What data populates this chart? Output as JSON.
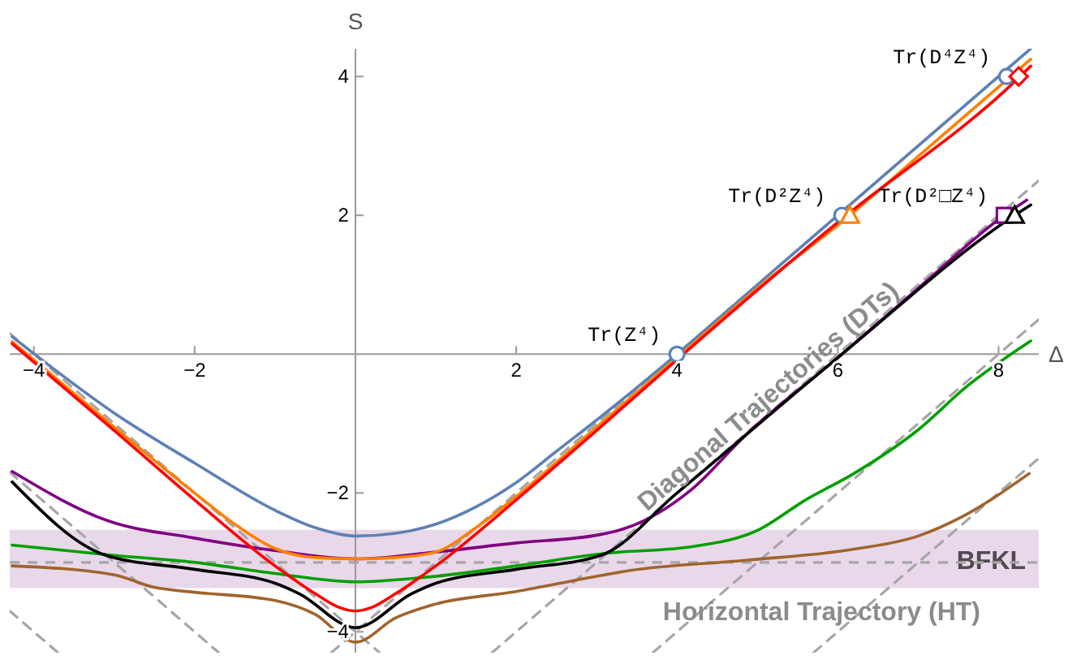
{
  "chart_data": {
    "type": "line",
    "xlabel": "Δ",
    "ylabel": "S",
    "xlim": [
      -4.3,
      8.5
    ],
    "ylim": [
      -4.3,
      4.4
    ],
    "xticks": [
      -4,
      -2,
      2,
      4,
      6,
      8
    ],
    "yticks": [
      -4,
      -2,
      2,
      4
    ],
    "grid": false,
    "bands": [
      {
        "axis": "y",
        "from": -3.37,
        "to": -2.53,
        "label": "BFKL",
        "color": "#e8d8ea"
      }
    ],
    "ref_lines": [
      {
        "axis": "y",
        "value": -3,
        "label": "Horizontal Trajectory (HT)",
        "color": "#a6a6a6",
        "line_style": "dashed"
      }
    ],
    "series": [
      {
        "type": "line",
        "color": "#a6a6a6",
        "line_style": "dashed",
        "x": [
          -0.3,
          8.4
        ],
        "values": [
          -4.3,
          4.4
        ]
      },
      {
        "type": "line",
        "color": "#a6a6a6",
        "line_style": "dashed",
        "x": [
          1.7,
          8.5
        ],
        "values": [
          -4.3,
          2.5
        ]
      },
      {
        "type": "line",
        "color": "#a6a6a6",
        "line_style": "dashed",
        "x": [
          3.7,
          8.5
        ],
        "values": [
          -4.3,
          0.5
        ]
      },
      {
        "type": "line",
        "color": "#a6a6a6",
        "line_style": "dashed",
        "x": [
          5.7,
          8.5
        ],
        "values": [
          -4.3,
          -1.5
        ]
      },
      {
        "type": "line",
        "color": "#a6a6a6",
        "line_style": "dashed",
        "x": [
          -4.3,
          0.3
        ],
        "values": [
          0.3,
          -4.3
        ]
      },
      {
        "type": "line",
        "color": "#a6a6a6",
        "line_style": "dashed",
        "x": [
          -4.3,
          -1.7
        ],
        "values": [
          -1.7,
          -4.3
        ]
      },
      {
        "type": "line",
        "color": "#a6a6a6",
        "line_style": "dashed",
        "x": [
          -4.3,
          -3.7
        ],
        "values": [
          -3.7,
          -4.3
        ]
      },
      {
        "color": "#a0642d",
        "x": [
          -4.27,
          -3,
          -2.5,
          -2,
          -1,
          -0.5,
          0,
          0.5,
          1,
          2,
          3,
          3.4,
          4.85,
          6.2,
          7,
          7.55,
          8.38
        ],
        "values": [
          -3.05,
          -3.18,
          -3.36,
          -3.43,
          -3.55,
          -3.75,
          -4.15,
          -3.8,
          -3.6,
          -3.42,
          -3.2,
          -3.12,
          -2.97,
          -2.81,
          -2.62,
          -2.34,
          -1.72
        ]
      },
      {
        "color": "#00a000",
        "x": [
          -4.27,
          -3,
          -2,
          -1,
          0,
          1,
          2,
          3.1,
          4.2,
          5,
          5.6,
          6.2,
          7,
          7.6,
          8.4
        ],
        "values": [
          -2.75,
          -2.9,
          -3.0,
          -3.16,
          -3.28,
          -3.2,
          -3.05,
          -2.87,
          -2.77,
          -2.54,
          -2.1,
          -1.72,
          -1.09,
          -0.47,
          0.19
        ]
      },
      {
        "color": "#800080",
        "x": [
          -4.27,
          -3.08,
          -2,
          -1,
          0,
          1,
          2,
          3.04,
          3.38,
          4.18,
          4.85,
          6,
          7,
          8.07,
          8.35
        ],
        "values": [
          -1.69,
          -2.4,
          -2.65,
          -2.83,
          -2.95,
          -2.85,
          -2.72,
          -2.6,
          -2.5,
          -1.95,
          -1.17,
          -0.05,
          0.95,
          2.0,
          2.22
        ]
      },
      {
        "color": "#000000",
        "x": [
          -4.27,
          -3.1,
          -2,
          -1,
          -0.7,
          0,
          0.7,
          1,
          2,
          3.05,
          4,
          6,
          8.2,
          8.4
        ],
        "values": [
          -1.84,
          -2.9,
          -3.1,
          -3.3,
          -3.45,
          -3.94,
          -3.45,
          -3.3,
          -3.1,
          -2.9,
          -2.0,
          -0.05,
          2.0,
          2.15
        ]
      },
      {
        "color": "#5e81b5",
        "x": [
          -4.27,
          -3,
          -2,
          -1,
          -0.5,
          0,
          0.5,
          1,
          1.5,
          2,
          2.5,
          3,
          4,
          5,
          6,
          7,
          8,
          8.4
        ],
        "values": [
          0.25,
          -0.85,
          -1.57,
          -2.25,
          -2.5,
          -2.62,
          -2.58,
          -2.45,
          -2.2,
          -1.85,
          -1.4,
          -0.95,
          0,
          1,
          2,
          3,
          4,
          4.4
        ]
      },
      {
        "color": "#ff8000",
        "x": [
          -4.27,
          -3,
          -2,
          -1.5,
          -1,
          -0.5,
          0,
          0.5,
          1,
          1.5,
          2,
          3,
          4,
          5,
          6.15,
          7,
          8,
          8.4
        ],
        "values": [
          0.18,
          -1.05,
          -2.0,
          -2.45,
          -2.8,
          -2.93,
          -2.95,
          -2.93,
          -2.85,
          -2.5,
          -2.05,
          -1.05,
          -0.05,
          0.95,
          2.0,
          2.85,
          3.85,
          4.25
        ]
      },
      {
        "color": "#ff0000",
        "x": [
          -4.27,
          -3,
          -2,
          -1,
          -0.5,
          -0.2,
          0,
          0.2,
          0.5,
          1,
          2,
          3,
          4,
          6,
          8.25,
          8.4
        ],
        "values": [
          0.15,
          -1.1,
          -2.1,
          -3.05,
          -3.45,
          -3.65,
          -3.7,
          -3.65,
          -3.45,
          -3.05,
          -2.1,
          -1.1,
          -0.08,
          1.9,
          3.98,
          4.15
        ]
      },
      {
        "type": "scatter",
        "color": "#5e81b5",
        "marker": "circle",
        "x": [
          4,
          6.05,
          8.1
        ],
        "values": [
          0,
          2,
          4
        ]
      },
      {
        "type": "scatter",
        "color": "#ff8000",
        "marker": "triangle",
        "x": [
          6.15
        ],
        "values": [
          2
        ]
      },
      {
        "type": "scatter",
        "color": "#ff0000",
        "marker": "diamond",
        "x": [
          8.25
        ],
        "values": [
          4
        ]
      },
      {
        "type": "scatter",
        "color": "#800080",
        "marker": "square",
        "x": [
          8.07
        ],
        "values": [
          2
        ]
      },
      {
        "type": "scatter",
        "color": "#000000",
        "marker": "triangle",
        "x": [
          8.2
        ],
        "values": [
          2
        ]
      }
    ],
    "annotations": [
      {
        "text": "Tr(Z⁴)",
        "x": 4,
        "y": 0
      },
      {
        "text": "Tr(D²Z⁴)",
        "x": 6.05,
        "y": 2
      },
      {
        "text": "Tr(D⁴Z⁴)",
        "x": 8.1,
        "y": 4
      },
      {
        "text": "Tr(D²□Z⁴)",
        "x": 8.07,
        "y": 2
      },
      {
        "text": "Diagonal Trajectories (DTs)",
        "x": 5.2,
        "y": -0.7
      }
    ]
  }
}
